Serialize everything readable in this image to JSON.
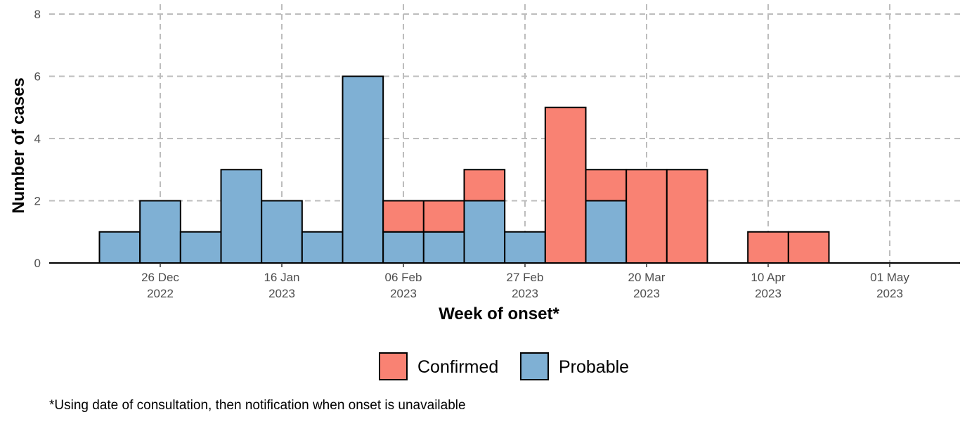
{
  "chart_data": {
    "type": "bar",
    "stacked": true,
    "xlabel": "Week of onset*",
    "ylabel": "Number of cases",
    "ylim": [
      0,
      8
    ],
    "yticks": [
      0,
      2,
      4,
      6,
      8
    ],
    "grid": true,
    "legend_position": "bottom",
    "x_ticks": [
      {
        "date": "2022-12-26",
        "line1": "26 Dec",
        "line2": "2022"
      },
      {
        "date": "2023-01-16",
        "line1": "16 Jan",
        "line2": "2023"
      },
      {
        "date": "2023-02-06",
        "line1": "06 Feb",
        "line2": "2023"
      },
      {
        "date": "2023-02-27",
        "line1": "27 Feb",
        "line2": "2023"
      },
      {
        "date": "2023-03-20",
        "line1": "20 Mar",
        "line2": "2023"
      },
      {
        "date": "2023-04-10",
        "line1": "10 Apr",
        "line2": "2023"
      },
      {
        "date": "2023-05-01",
        "line1": "01 May",
        "line2": "2023"
      }
    ],
    "weeks": [
      "2022-12-19",
      "2022-12-26",
      "2023-01-02",
      "2023-01-09",
      "2023-01-16",
      "2023-01-23",
      "2023-01-30",
      "2023-02-06",
      "2023-02-13",
      "2023-02-20",
      "2023-02-27",
      "2023-03-06",
      "2023-03-13",
      "2023-03-20",
      "2023-03-27",
      "2023-04-03",
      "2023-04-10",
      "2023-04-17"
    ],
    "series": [
      {
        "name": "Probable",
        "color": "#7FB0D4",
        "values": [
          1,
          2,
          1,
          3,
          2,
          1,
          6,
          1,
          1,
          2,
          1,
          0,
          2,
          0,
          0,
          0,
          0,
          0
        ]
      },
      {
        "name": "Confirmed",
        "color": "#F98273",
        "values": [
          0,
          0,
          0,
          0,
          0,
          0,
          0,
          1,
          1,
          1,
          0,
          5,
          1,
          3,
          3,
          0,
          1,
          1
        ]
      }
    ],
    "legend": [
      {
        "name": "Confirmed",
        "color": "#F98273"
      },
      {
        "name": "Probable",
        "color": "#7FB0D4"
      }
    ]
  },
  "footnote": "*Using date of consultation, then notification when onset is unavailable"
}
